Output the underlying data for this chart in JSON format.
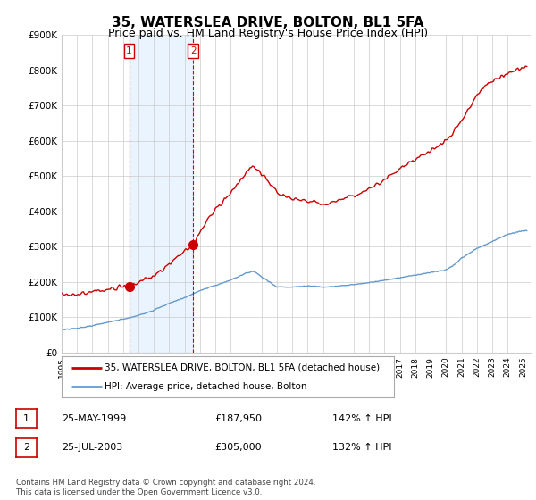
{
  "title": "35, WATERSLEA DRIVE, BOLTON, BL1 5FA",
  "subtitle": "Price paid vs. HM Land Registry's House Price Index (HPI)",
  "legend_line1": "35, WATERSLEA DRIVE, BOLTON, BL1 5FA (detached house)",
  "legend_line2": "HPI: Average price, detached house, Bolton",
  "table": [
    {
      "num": "1",
      "date": "25-MAY-1999",
      "price": "£187,950",
      "hpi": "142% ↑ HPI"
    },
    {
      "num": "2",
      "date": "25-JUL-2003",
      "price": "£305,000",
      "hpi": "132% ↑ HPI"
    }
  ],
  "footnote": "Contains HM Land Registry data © Crown copyright and database right 2024.\nThis data is licensed under the Open Government Licence v3.0.",
  "sale1_year": 1999.39,
  "sale1_price": 187950,
  "sale2_year": 2003.56,
  "sale2_price": 305000,
  "vline1_year": 1999.39,
  "vline2_year": 2003.56,
  "ylim": [
    0,
    900000
  ],
  "xlim_start": 1995.0,
  "xlim_end": 2025.5,
  "red_color": "#cc0000",
  "blue_color": "#6699cc",
  "blue_fill_color": "#ddeeff",
  "vline_color": "#cc0000",
  "grid_color": "#cccccc",
  "background_color": "#ffffff",
  "title_fontsize": 11,
  "subtitle_fontsize": 9
}
